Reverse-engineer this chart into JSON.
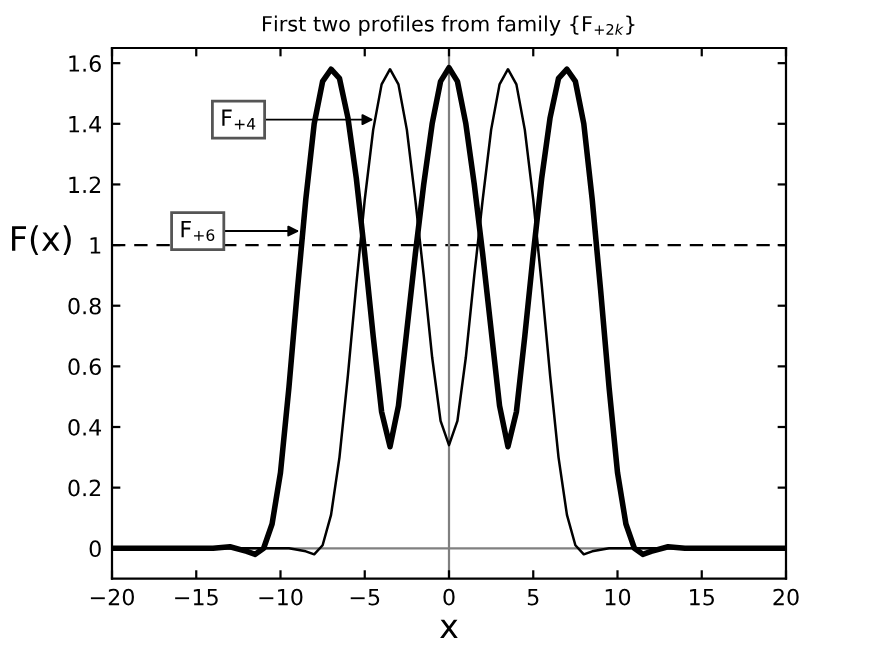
{
  "chart_data": {
    "type": "line",
    "title": "First two profiles from family {F$_{+2k}$}",
    "xlabel": "x",
    "ylabel": "F(x)",
    "xlim": [
      -20,
      20
    ],
    "xticks": [
      {
        "value": -20,
        "label": "−20"
      },
      {
        "value": -15,
        "label": "−15"
      },
      {
        "value": -10,
        "label": "−10"
      },
      {
        "value": -5,
        "label": "−5"
      },
      0,
      5,
      10,
      15,
      20
    ],
    "ylim": [
      -0.1,
      1.65
    ],
    "yticks": [
      0,
      0.2,
      0.4,
      0.6,
      0.8,
      1,
      1.2,
      1.4,
      1.6
    ],
    "grid": false,
    "legend": false,
    "marker": "none",
    "line_style": "solid",
    "series": [
      {
        "color": "#000000",
        "x": [
          -20,
          -9.5,
          -8.5,
          -8,
          -7.5,
          -7,
          -6.5,
          -6,
          -5.5,
          -5,
          -4.5,
          -4,
          -3.5,
          -3,
          -2.5,
          -2,
          -1.5,
          -1,
          -0.5,
          0,
          0.5,
          1,
          1.5,
          2,
          2.5,
          3,
          3.5,
          4,
          4.5,
          5,
          5.5,
          6,
          6.5,
          7,
          7.5,
          8,
          8.5,
          9.5,
          20
        ],
        "values": [
          0,
          0,
          -0.01,
          -0.02,
          0.01,
          0.11,
          0.3,
          0.57,
          0.87,
          1.15,
          1.38,
          1.53,
          1.58,
          1.53,
          1.38,
          1.15,
          0.9,
          0.63,
          0.42,
          0.34,
          0.42,
          0.63,
          0.9,
          1.15,
          1.38,
          1.53,
          1.58,
          1.53,
          1.38,
          1.15,
          0.87,
          0.57,
          0.3,
          0.11,
          0.01,
          -0.02,
          -0.01,
          0,
          0
        ]
      },
      {
        "color": "#000000",
        "x": [
          -20,
          -14,
          -13,
          -12,
          -11.5,
          -11,
          -10.5,
          -10,
          -9.5,
          -9,
          -8.5,
          -8,
          -7.5,
          -7,
          -6.5,
          -6,
          -5.5,
          -5,
          -4.5,
          -4,
          -3.5,
          -3,
          -2.5,
          -2,
          -1.5,
          -1,
          -0.5,
          0,
          0.5,
          1,
          1.5,
          2,
          2.5,
          3,
          3.5,
          4,
          4.5,
          5,
          5.5,
          6,
          6.5,
          7,
          7.5,
          8,
          8.5,
          9,
          9.5,
          10,
          10.5,
          11,
          11.5,
          12,
          13,
          14,
          20
        ],
        "values": [
          0,
          0,
          0.005,
          -0.01,
          -0.02,
          0,
          0.08,
          0.25,
          0.53,
          0.85,
          1.15,
          1.4,
          1.54,
          1.58,
          1.55,
          1.42,
          1.22,
          0.97,
          0.7,
          0.45,
          0.335,
          0.47,
          0.72,
          0.97,
          1.2,
          1.4,
          1.54,
          1.585,
          1.54,
          1.4,
          1.2,
          0.97,
          0.72,
          0.47,
          0.335,
          0.45,
          0.7,
          0.97,
          1.22,
          1.42,
          1.55,
          1.58,
          1.54,
          1.4,
          1.15,
          0.85,
          0.53,
          0.25,
          0.08,
          0,
          -0.02,
          -0.01,
          0.005,
          0,
          0
        ]
      }
    ],
    "ref_lines": [
      {
        "axis": "y",
        "value": 1,
        "color": "#000000",
        "line_style": "dashed"
      },
      {
        "axis": "x",
        "value": 0,
        "color": "#808080",
        "line_style": "solid"
      },
      {
        "axis": "y",
        "value": 0,
        "color": "#808080",
        "line_style": "solid"
      }
    ],
    "annotations": [
      "F$_{+4}$",
      "F$_{+6}$"
    ]
  }
}
